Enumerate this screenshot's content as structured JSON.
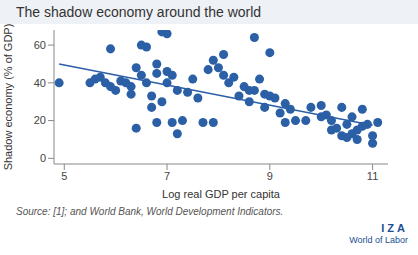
{
  "chart_data": {
    "type": "scatter",
    "title": "The shadow economy around the world",
    "x_label": "Log real GDP per capita",
    "y_label": "Shadow economy (% of GDP)",
    "source": "Source: [1]; and World Bank, World Development Indicators.",
    "logo": "IZA",
    "logo_subtitle": "World of Labor",
    "color": "#2b5fa6",
    "marker": "circle",
    "xlim": [
      4.8,
      11.3
    ],
    "xticks": [
      5,
      7,
      9,
      11
    ],
    "ylim": [
      -3,
      68
    ],
    "yticks": [
      0,
      20,
      40,
      60
    ],
    "grid": false,
    "x": [
      4.9,
      5.5,
      5.6,
      5.7,
      5.8,
      5.9,
      5.9,
      6.0,
      6.1,
      6.2,
      6.3,
      6.3,
      6.4,
      6.4,
      6.5,
      6.5,
      6.6,
      6.6,
      6.7,
      6.7,
      6.8,
      6.8,
      6.8,
      6.9,
      6.9,
      7.0,
      7.0,
      7.0,
      7.1,
      7.1,
      7.2,
      7.2,
      7.3,
      7.4,
      7.5,
      7.6,
      7.7,
      7.8,
      7.9,
      7.9,
      8.0,
      8.1,
      8.1,
      8.2,
      8.3,
      8.4,
      8.5,
      8.6,
      8.6,
      8.7,
      8.7,
      8.8,
      8.9,
      8.9,
      9.0,
      9.0,
      9.1,
      9.2,
      9.3,
      9.3,
      9.4,
      9.5,
      9.7,
      9.8,
      10.0,
      10.0,
      10.1,
      10.2,
      10.2,
      10.3,
      10.4,
      10.4,
      10.5,
      10.5,
      10.6,
      10.6,
      10.7,
      10.7,
      10.8,
      10.8,
      10.9,
      11.0,
      11.0,
      11.1
    ],
    "values": [
      40,
      40,
      42,
      43,
      40,
      58,
      38,
      36,
      41,
      40,
      38,
      34,
      48,
      16,
      44,
      60,
      59,
      40,
      27,
      33,
      45,
      19,
      50,
      67,
      30,
      66,
      46,
      40,
      44,
      19,
      13,
      36,
      20,
      35,
      42,
      32,
      19,
      47,
      52,
      19,
      48,
      55,
      44,
      40,
      43,
      33,
      38,
      36,
      30,
      64,
      36,
      42,
      34,
      27,
      56,
      33,
      32,
      24,
      29,
      19,
      26,
      20,
      20,
      27,
      28,
      22,
      23,
      20,
      15,
      16,
      27,
      12,
      18,
      11,
      13,
      22,
      10,
      15,
      17,
      26,
      18,
      8,
      12,
      19
    ],
    "trend": {
      "type": "line",
      "x": [
        4.9,
        11.0
      ],
      "values": [
        50,
        17.5
      ]
    }
  }
}
